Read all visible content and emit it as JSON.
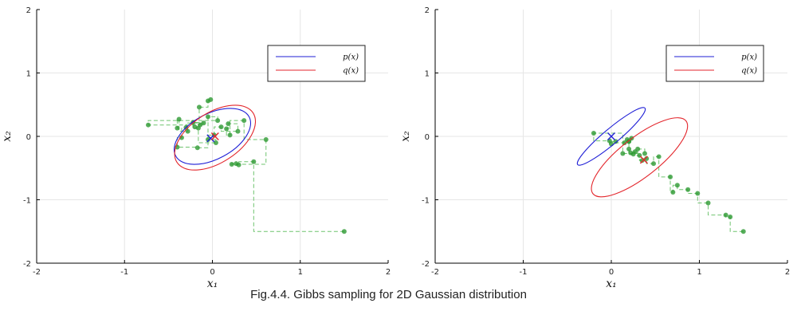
{
  "caption": "Fig.4.4. Gibbs sampling for 2D Gaussian distribution",
  "colors": {
    "p_curve": "#1f1fd6",
    "q_curve": "#e3262c",
    "samples": "#2e9a33",
    "path": "#6fc46f",
    "grid": "#e6e6e6"
  },
  "chart_data": [
    {
      "type": "scatter",
      "title": "",
      "xlabel": "x₁",
      "ylabel": "x₂",
      "xlim": [
        -2,
        2
      ],
      "ylim": [
        -2,
        2
      ],
      "xticks": [
        "-2",
        "-1",
        "0",
        "1",
        "2"
      ],
      "yticks": [
        "-2",
        "-1",
        "0",
        "1",
        "2"
      ],
      "grid": true,
      "legend_position": "top-right",
      "legend": [
        "p(x)",
        "q(x)"
      ],
      "ellipses": [
        {
          "name": "p(x)",
          "center": [
            0.0,
            0.0
          ],
          "rx": 0.55,
          "ry": 0.3,
          "angle_deg": -28
        },
        {
          "name": "q(x)",
          "center": [
            0.03,
            -0.02
          ],
          "rx": 0.6,
          "ry": 0.33,
          "angle_deg": -33
        }
      ],
      "means": [
        {
          "name": "p(x) mean",
          "point": [
            -0.02,
            -0.03
          ]
        },
        {
          "name": "q(x) mean",
          "point": [
            0.03,
            0.0
          ]
        }
      ],
      "samples": [
        [
          1.5,
          -1.5
        ],
        [
          0.47,
          -0.4
        ],
        [
          0.3,
          -0.45
        ],
        [
          0.27,
          -0.43
        ],
        [
          0.22,
          -0.44
        ],
        [
          0.61,
          -0.05
        ],
        [
          0.36,
          0.25
        ],
        [
          0.2,
          0.02
        ],
        [
          0.16,
          0.12
        ],
        [
          0.18,
          0.2
        ],
        [
          0.29,
          0.08
        ],
        [
          0.1,
          0.15
        ],
        [
          0.02,
          0.02
        ],
        [
          -0.05,
          -0.05
        ],
        [
          0.04,
          -0.1
        ],
        [
          -0.16,
          0.13
        ],
        [
          -0.2,
          0.15
        ],
        [
          -0.22,
          0.22
        ],
        [
          -0.14,
          0.18
        ],
        [
          -0.1,
          0.21
        ],
        [
          -0.3,
          0.14
        ],
        [
          -0.28,
          0.08
        ],
        [
          -0.38,
          0.27
        ],
        [
          -0.4,
          0.13
        ],
        [
          -0.35,
          -0.02
        ],
        [
          -0.4,
          -0.17
        ],
        [
          -0.17,
          -0.18
        ],
        [
          -0.05,
          0.31
        ],
        [
          0.06,
          0.25
        ],
        [
          -0.73,
          0.18
        ],
        [
          -0.15,
          0.46
        ],
        [
          -0.05,
          0.56
        ],
        [
          -0.02,
          0.58
        ]
      ]
    },
    {
      "type": "scatter",
      "title": "",
      "xlabel": "x₁",
      "ylabel": "x₂",
      "xlim": [
        -2,
        2
      ],
      "ylim": [
        -2,
        2
      ],
      "xticks": [
        "-2",
        "-1",
        "0",
        "1",
        "2"
      ],
      "yticks": [
        "-2",
        "-1",
        "0",
        "1",
        "2"
      ],
      "grid": true,
      "legend_position": "top-right",
      "legend": [
        "p(x)",
        "q(x)"
      ],
      "ellipses": [
        {
          "name": "p(x)",
          "center": [
            0.0,
            0.0
          ],
          "rx": 0.58,
          "ry": 0.1,
          "angle_deg": -40
        },
        {
          "name": "q(x)",
          "center": [
            0.32,
            -0.33
          ],
          "rx": 0.78,
          "ry": 0.26,
          "angle_deg": -38
        }
      ],
      "means": [
        {
          "name": "p(x) mean",
          "point": [
            0.0,
            0.0
          ]
        },
        {
          "name": "q(x) mean",
          "point": [
            0.37,
            -0.37
          ]
        }
      ],
      "samples": [
        [
          1.5,
          -1.5
        ],
        [
          1.35,
          -1.27
        ],
        [
          1.3,
          -1.24
        ],
        [
          1.1,
          -1.05
        ],
        [
          0.98,
          -0.9
        ],
        [
          0.87,
          -0.84
        ],
        [
          0.75,
          -0.77
        ],
        [
          0.7,
          -0.88
        ],
        [
          0.67,
          -0.64
        ],
        [
          0.54,
          -0.32
        ],
        [
          0.48,
          -0.43
        ],
        [
          0.4,
          -0.35
        ],
        [
          0.35,
          -0.38
        ],
        [
          0.32,
          -0.3
        ],
        [
          0.27,
          -0.24
        ],
        [
          0.25,
          -0.28
        ],
        [
          0.22,
          -0.26
        ],
        [
          0.2,
          -0.2
        ],
        [
          0.2,
          -0.08
        ],
        [
          0.18,
          -0.05
        ],
        [
          0.23,
          -0.03
        ],
        [
          0.2,
          -0.08
        ],
        [
          0.15,
          -0.1
        ],
        [
          0.05,
          -0.08
        ],
        [
          0.0,
          -0.12
        ],
        [
          -0.02,
          -0.07
        ],
        [
          -0.2,
          0.05
        ],
        [
          0.13,
          -0.27
        ],
        [
          0.3,
          -0.2
        ],
        [
          0.38,
          -0.27
        ]
      ]
    }
  ]
}
